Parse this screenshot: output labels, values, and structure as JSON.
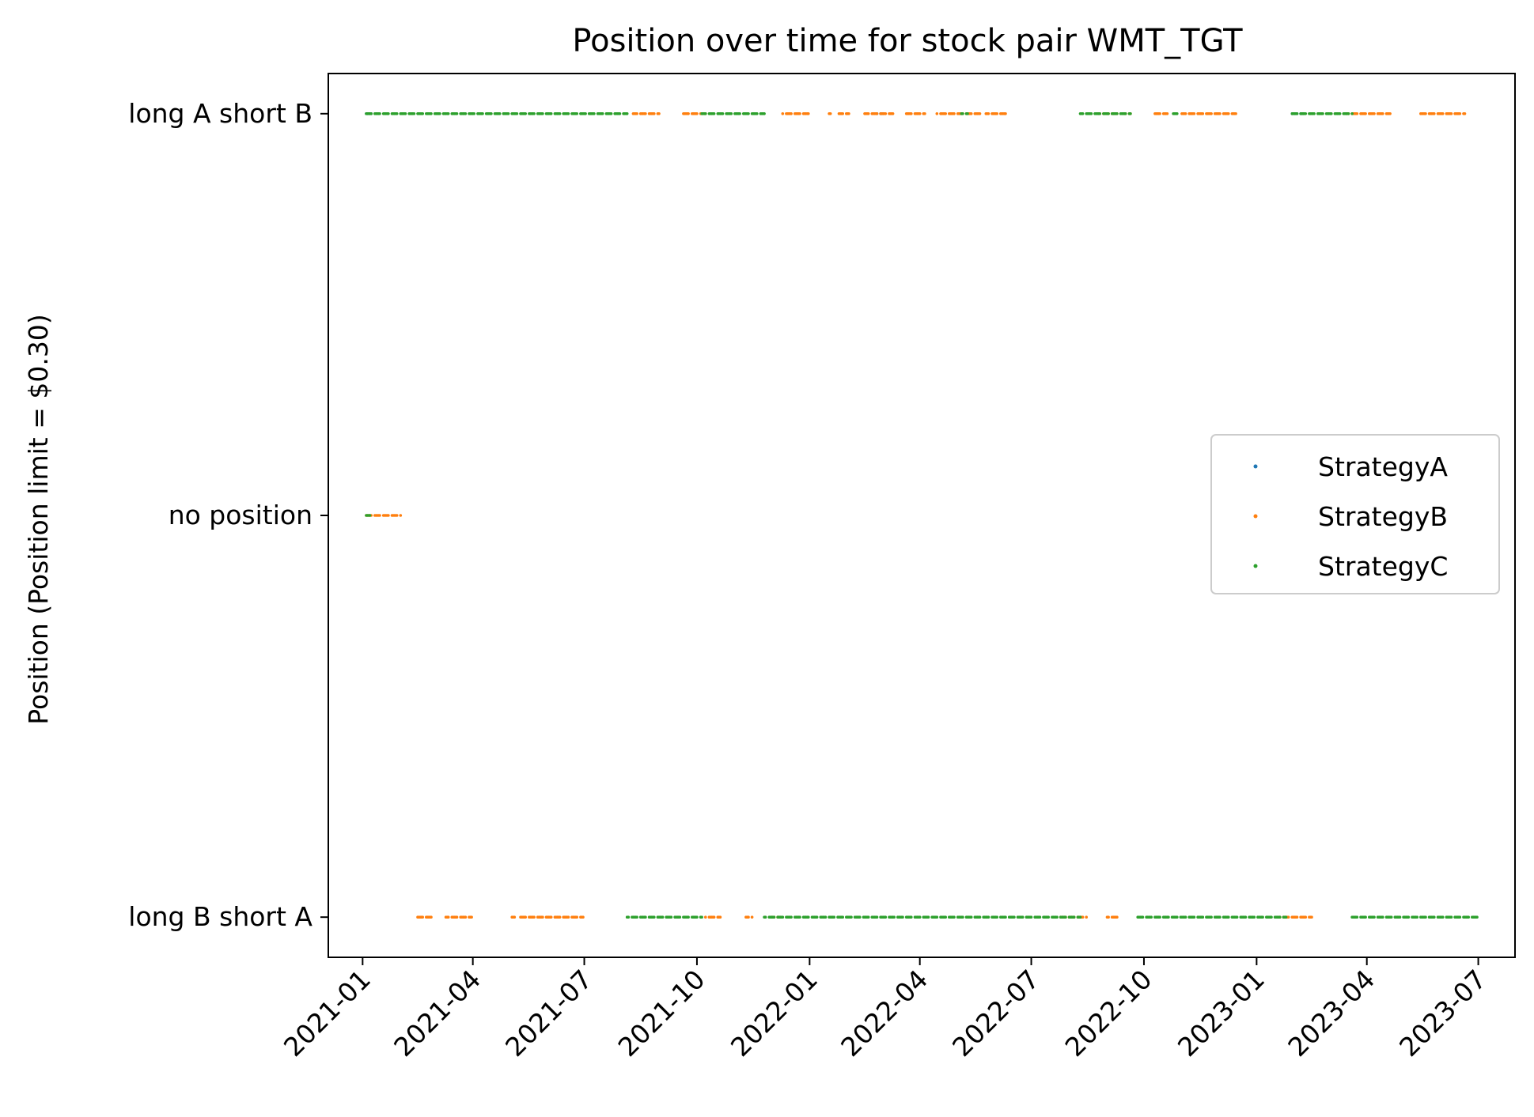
{
  "chart_data": {
    "type": "scatter",
    "title": "Position over time for stock pair WMT_TGT",
    "xlabel": "",
    "ylabel": "Position (Position limit = $0.30)",
    "x_ticks": [
      "2021-01",
      "2021-04",
      "2021-07",
      "2021-10",
      "2022-01",
      "2022-04",
      "2022-07",
      "2022-10",
      "2023-01",
      "2023-04",
      "2023-07"
    ],
    "y_categories": [
      "long B short A",
      "no position",
      "long A short B"
    ],
    "xlim": [
      "2020-12-04",
      "2023-07-31"
    ],
    "ylim": [
      -0.1,
      2.1
    ],
    "legend": {
      "position": "center-right"
    },
    "grid": false,
    "series": [
      {
        "name": "StrategyA",
        "color": "#1f77b4",
        "segments": [
          {
            "y": 2,
            "start": "2021-01-04",
            "end": "2021-01-10"
          },
          {
            "y": 2,
            "start": "2022-02-25",
            "end": "2022-03-02"
          },
          {
            "y": 2,
            "start": "2023-01-30",
            "end": "2023-02-08"
          }
        ]
      },
      {
        "name": "StrategyB",
        "color": "#ff7f0e",
        "segments": [
          {
            "y": 1,
            "start": "2021-01-04",
            "end": "2021-02-01"
          },
          {
            "y": 0,
            "start": "2021-02-15",
            "end": "2021-02-28"
          },
          {
            "y": 0,
            "start": "2021-03-10",
            "end": "2021-03-31"
          },
          {
            "y": 0,
            "start": "2021-05-01",
            "end": "2021-05-05"
          },
          {
            "y": 0,
            "start": "2021-05-10",
            "end": "2021-06-30"
          },
          {
            "y": 2,
            "start": "2021-08-10",
            "end": "2021-08-31"
          },
          {
            "y": 2,
            "start": "2021-09-20",
            "end": "2021-10-10"
          },
          {
            "y": 0,
            "start": "2021-10-08",
            "end": "2021-10-20"
          },
          {
            "y": 0,
            "start": "2021-11-10",
            "end": "2021-11-15"
          },
          {
            "y": 0,
            "start": "2021-12-01",
            "end": "2021-12-08"
          },
          {
            "y": 2,
            "start": "2021-12-10",
            "end": "2021-12-31"
          },
          {
            "y": 2,
            "start": "2022-01-15",
            "end": "2022-01-18"
          },
          {
            "y": 2,
            "start": "2022-01-25",
            "end": "2022-02-02"
          },
          {
            "y": 2,
            "start": "2022-02-15",
            "end": "2022-03-10"
          },
          {
            "y": 2,
            "start": "2022-03-20",
            "end": "2022-04-05"
          },
          {
            "y": 2,
            "start": "2022-04-15",
            "end": "2022-05-20"
          },
          {
            "y": 2,
            "start": "2022-05-25",
            "end": "2022-06-10"
          },
          {
            "y": 0,
            "start": "2022-07-25",
            "end": "2022-08-15"
          },
          {
            "y": 2,
            "start": "2022-08-25",
            "end": "2022-09-10"
          },
          {
            "y": 0,
            "start": "2022-09-01",
            "end": "2022-09-10"
          },
          {
            "y": 2,
            "start": "2022-09-15",
            "end": "2022-09-20"
          },
          {
            "y": 2,
            "start": "2022-10-10",
            "end": "2022-10-20"
          },
          {
            "y": 2,
            "start": "2022-11-01",
            "end": "2022-12-15"
          },
          {
            "y": 0,
            "start": "2023-01-20",
            "end": "2023-02-15"
          },
          {
            "y": 2,
            "start": "2023-03-15",
            "end": "2023-04-20"
          },
          {
            "y": 2,
            "start": "2023-05-15",
            "end": "2023-06-20"
          }
        ]
      },
      {
        "name": "StrategyC",
        "color": "#2ca02c",
        "segments": [
          {
            "y": 2,
            "start": "2021-01-04",
            "end": "2021-08-05"
          },
          {
            "y": 1,
            "start": "2021-01-04",
            "end": "2021-01-07"
          },
          {
            "y": 0,
            "start": "2021-08-05",
            "end": "2021-10-05"
          },
          {
            "y": 2,
            "start": "2021-10-05",
            "end": "2021-11-25"
          },
          {
            "y": 0,
            "start": "2021-11-25",
            "end": "2022-08-10"
          },
          {
            "y": 2,
            "start": "2022-05-05",
            "end": "2022-05-10"
          },
          {
            "y": 2,
            "start": "2022-08-10",
            "end": "2022-09-20"
          },
          {
            "y": 0,
            "start": "2022-09-25",
            "end": "2023-01-25"
          },
          {
            "y": 2,
            "start": "2022-10-25",
            "end": "2022-10-30"
          },
          {
            "y": 2,
            "start": "2023-01-30",
            "end": "2023-03-20"
          },
          {
            "y": 0,
            "start": "2023-03-20",
            "end": "2023-06-30"
          }
        ]
      }
    ]
  }
}
